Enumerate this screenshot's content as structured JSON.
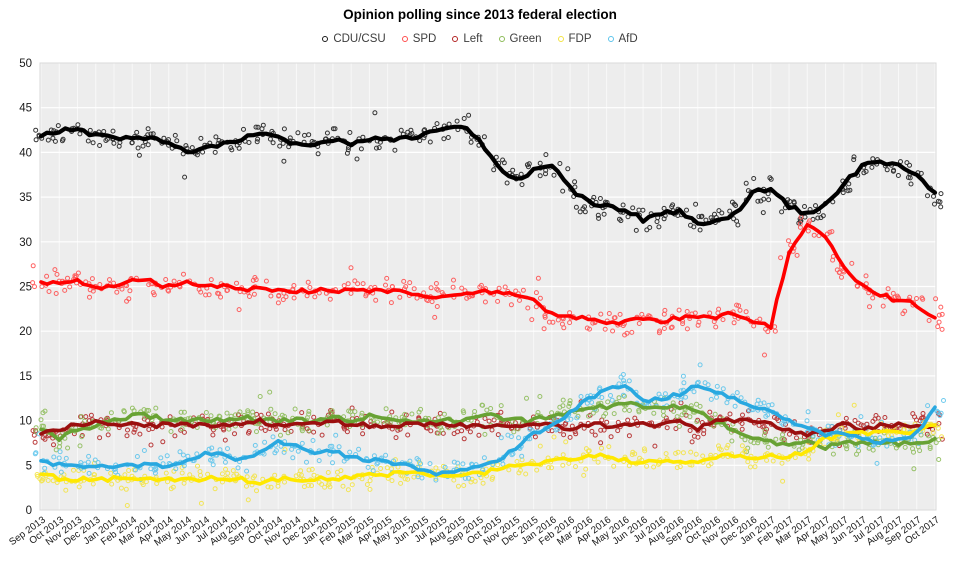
{
  "title": "Opinion polling since 2013 federal election",
  "chart_data": {
    "type": "scatter",
    "subtype": "poll-scatter-with-trend-lines",
    "title": "Opinion polling since 2013 federal election",
    "xlabel": "",
    "ylabel": "",
    "ylim": [
      0,
      50
    ],
    "y_tick_step": 5,
    "grid": true,
    "legend_position": "top-center",
    "plot_bg": "#ededed",
    "grid_color_vertical": "#f8f8f8",
    "grid_color_horizontal": "#ffffff",
    "border_color": "#d8d8d8",
    "x_labels": [
      "Sep 2013",
      "Oct 2013",
      "Nov 2013",
      "Dec 2013",
      "Jan 2014",
      "Feb 2014",
      "Mar 2014",
      "Apr 2014",
      "May 2014",
      "Jun 2014",
      "Jul 2014",
      "Aug 2014",
      "Sep 2014",
      "Oct 2014",
      "Nov 2014",
      "Dec 2014",
      "Jan 2015",
      "Feb 2015",
      "Mar 2015",
      "Apr 2015",
      "May 2015",
      "Jun 2015",
      "Jul 2015",
      "Aug 2015",
      "Sep 2015",
      "Oct 2015",
      "Nov 2015",
      "Dec 2015",
      "Jan 2016",
      "Feb 2016",
      "Mar 2016",
      "Apr 2016",
      "May 2016",
      "Jun 2016",
      "Jul 2016",
      "Aug 2016",
      "Sep 2016",
      "Oct 2016",
      "Nov 2016",
      "Dec 2016",
      "Jan 2017",
      "Feb 2017",
      "Mar 2017",
      "Apr 2017",
      "May 2017",
      "Jun 2017",
      "Jul 2017",
      "Aug 2017",
      "Sep 2017",
      "Oct 2017"
    ],
    "series": [
      {
        "name": "CDU/CSU",
        "color": "#000000",
        "scatter_color": "#1a1a1a",
        "values": [
          41.8,
          42.5,
          42.5,
          42,
          41.5,
          41.5,
          41.5,
          41,
          40,
          40.5,
          41,
          41.5,
          42,
          41.5,
          41,
          41,
          41.5,
          41,
          41.5,
          41.5,
          41.5,
          42,
          42.5,
          43,
          41.5,
          38.5,
          37,
          38,
          38.5,
          36,
          34.5,
          34,
          33.5,
          32.5,
          33,
          33.5,
          32,
          32.5,
          33,
          35.5,
          36,
          34,
          33,
          34,
          36.5,
          38.5,
          39,
          38.5,
          37.5,
          35.5
        ]
      },
      {
        "name": "SPD",
        "color": "#ff0000",
        "scatter_color": "#ff4d4d",
        "values": [
          25.5,
          25.5,
          25.5,
          25,
          25,
          25.5,
          25.5,
          25,
          25.5,
          25,
          25,
          24.5,
          25,
          24.5,
          24.5,
          24.5,
          24.5,
          24.5,
          24.5,
          24.5,
          24.5,
          24,
          24,
          24,
          24.5,
          24.5,
          24,
          23.5,
          22,
          21.5,
          21.5,
          21,
          21,
          21.5,
          21,
          21.5,
          21.5,
          21.5,
          22,
          21,
          20.5,
          29,
          32,
          30.5,
          27,
          25,
          24,
          23.5,
          23,
          21.5
        ]
      },
      {
        "name": "Left",
        "color": "#9b0f0f",
        "scatter_color": "#b22222",
        "values": [
          8.5,
          9,
          9.5,
          10,
          9.5,
          9.5,
          9.5,
          9.5,
          9.5,
          9.5,
          9.5,
          9.5,
          10,
          9.5,
          9.5,
          9.5,
          10,
          9.5,
          9.5,
          9.5,
          9.5,
          9.5,
          9.5,
          9.5,
          9.5,
          9.5,
          9.5,
          9.5,
          9.5,
          9,
          9.5,
          9.5,
          9.5,
          9.5,
          9.5,
          10,
          9,
          10,
          10,
          10,
          9.5,
          9,
          8.5,
          9,
          9.5,
          9,
          9.5,
          9.5,
          9.5,
          9.5
        ]
      },
      {
        "name": "Green",
        "color": "#68a234",
        "scatter_color": "#8cbb57",
        "values": [
          9,
          8,
          9,
          9.5,
          10,
          10.5,
          10.5,
          10,
          10,
          10,
          10,
          10.5,
          10,
          10,
          10,
          10,
          10.5,
          10,
          10.5,
          10.5,
          10,
          10,
          10,
          10,
          10.5,
          10.5,
          10,
          10,
          10.5,
          11,
          11.5,
          11.5,
          12,
          11.5,
          11.5,
          11.5,
          11,
          10,
          9,
          8,
          7.5,
          7.5,
          7.5,
          7,
          7.5,
          7.5,
          7.5,
          7.5,
          7.5,
          8
        ]
      },
      {
        "name": "FDP",
        "color": "#ffe800",
        "scatter_color": "#f3e342",
        "values": [
          4,
          3.5,
          3.5,
          3.5,
          3.5,
          3.5,
          3.5,
          3.5,
          3.5,
          3.5,
          3.5,
          3.5,
          3,
          3.5,
          3.5,
          3.5,
          3.5,
          3.5,
          4,
          4,
          4,
          4,
          4,
          4,
          4,
          4.5,
          5,
          5,
          5.5,
          5.5,
          6,
          6,
          5.5,
          5.5,
          5.5,
          5.5,
          5.5,
          6,
          6,
          6,
          6,
          6,
          6.5,
          8,
          8.5,
          8.5,
          9,
          8.5,
          9,
          9.5
        ]
      },
      {
        "name": "AfD",
        "color": "#29a8e0",
        "scatter_color": "#5cc4ec",
        "values": [
          5.5,
          5,
          5,
          5,
          5,
          5,
          5,
          5,
          5.5,
          6.5,
          6,
          5.5,
          6.5,
          7.5,
          7,
          6.5,
          6.5,
          6,
          5.5,
          5.5,
          5,
          4.5,
          4,
          4.5,
          5,
          5.5,
          7,
          8.5,
          9.5,
          11,
          12.5,
          13.5,
          14,
          12,
          12.5,
          13,
          14,
          13,
          12.5,
          11.5,
          11,
          10,
          9,
          8.5,
          8.5,
          8,
          7.5,
          8,
          8.5,
          11.5
        ]
      }
    ],
    "trend_draw_order": [
      "Green",
      "Left",
      "FDP",
      "AfD",
      "SPD",
      "CDU/CSU"
    ]
  }
}
